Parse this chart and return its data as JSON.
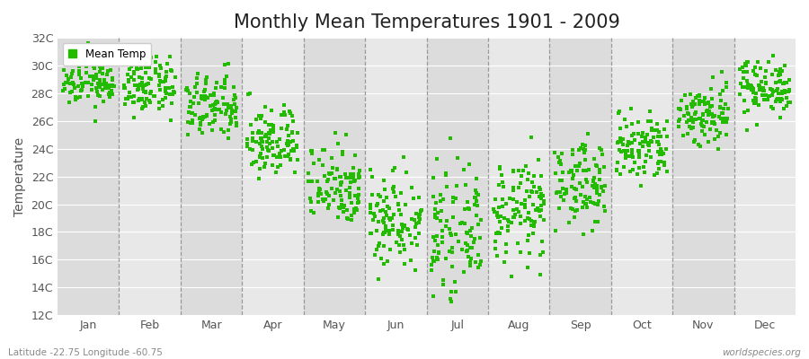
{
  "title": "Monthly Mean Temperatures 1901 - 2009",
  "ylabel": "Temperature",
  "ytick_labels": [
    "12C",
    "14C",
    "16C",
    "18C",
    "20C",
    "22C",
    "24C",
    "26C",
    "28C",
    "30C",
    "32C"
  ],
  "ytick_values": [
    12,
    14,
    16,
    18,
    20,
    22,
    24,
    26,
    28,
    30,
    32
  ],
  "ylim": [
    12,
    32
  ],
  "months": [
    "Jan",
    "Feb",
    "Mar",
    "Apr",
    "May",
    "Jun",
    "Jul",
    "Aug",
    "Sep",
    "Oct",
    "Nov",
    "Dec"
  ],
  "dot_color": "#22BB00",
  "dot_size": 7,
  "bg_color": "#FFFFFF",
  "plot_bg_even": "#DCDCDC",
  "plot_bg_odd": "#E8E8E8",
  "grid_color": "#999999",
  "title_fontsize": 15,
  "axis_label_fontsize": 10,
  "tick_fontsize": 9,
  "legend_label": "Mean Temp",
  "footer_left": "Latitude -22.75 Longitude -60.75",
  "footer_right": "worldspecies.org",
  "num_years": 109,
  "mean_temps": [
    29.0,
    28.5,
    27.0,
    24.5,
    21.5,
    19.0,
    18.0,
    19.5,
    21.5,
    24.0,
    26.5,
    28.5
  ],
  "std_temps": [
    1.0,
    1.0,
    1.2,
    1.3,
    1.5,
    1.8,
    2.0,
    1.8,
    1.5,
    1.3,
    1.2,
    1.0
  ]
}
